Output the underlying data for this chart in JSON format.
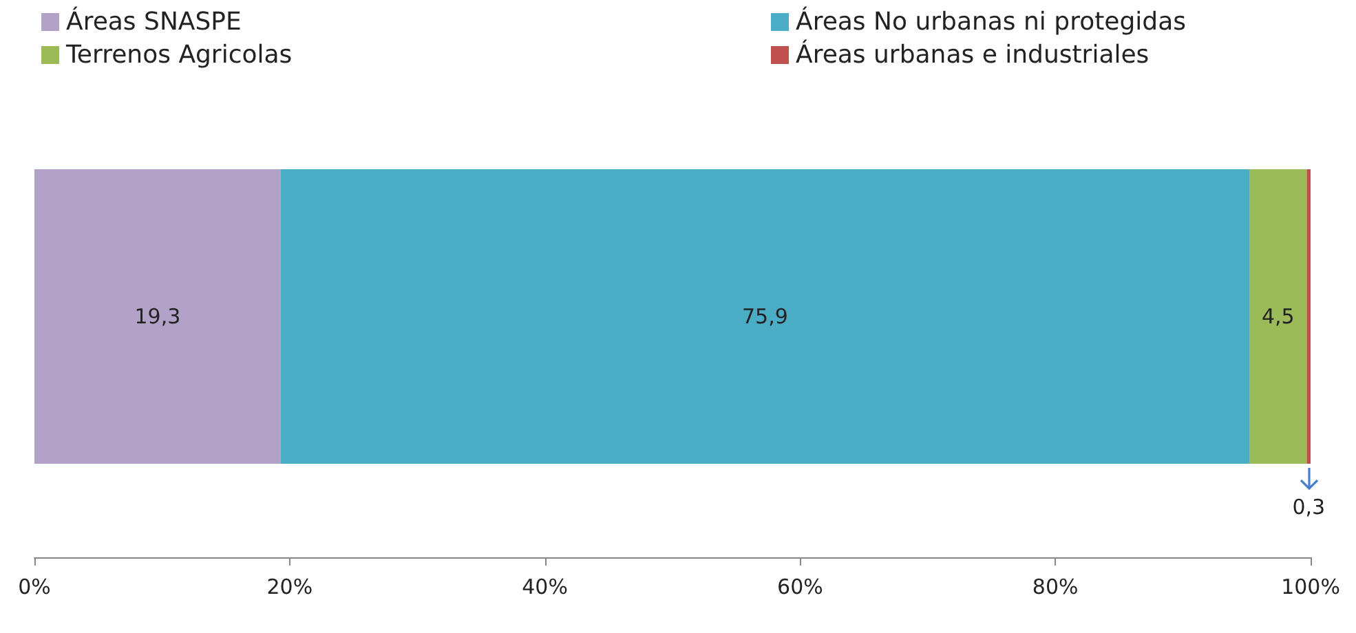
{
  "chart_data": {
    "type": "bar",
    "orientation": "horizontal",
    "stacked": true,
    "categories": [
      null
    ],
    "series": [
      {
        "name": "Áreas SNASPE",
        "color": "#b3a2c7",
        "values": [
          19.3
        ],
        "value_labels": [
          "19,3"
        ]
      },
      {
        "name": "Áreas No urbanas ni protegidas",
        "color": "#4bacc6",
        "values": [
          75.9
        ],
        "value_labels": [
          "75,9"
        ]
      },
      {
        "name": "Terrenos Agricolas",
        "color": "#9bbb59",
        "values": [
          4.5
        ],
        "value_labels": [
          "4,5"
        ]
      },
      {
        "name": "Áreas urbanas e industriales",
        "color": "#c0504d",
        "values": [
          0.3
        ],
        "value_labels": [
          "0,3"
        ]
      }
    ],
    "xlim": [
      0,
      100
    ],
    "xticks": [
      {
        "value": 0,
        "label": "0%"
      },
      {
        "value": 20,
        "label": "20%"
      },
      {
        "value": 40,
        "label": "40%"
      },
      {
        "value": 60,
        "label": "60%"
      },
      {
        "value": 80,
        "label": "80%"
      },
      {
        "value": 100,
        "label": "100%"
      }
    ],
    "grid": false,
    "legend": "top"
  }
}
